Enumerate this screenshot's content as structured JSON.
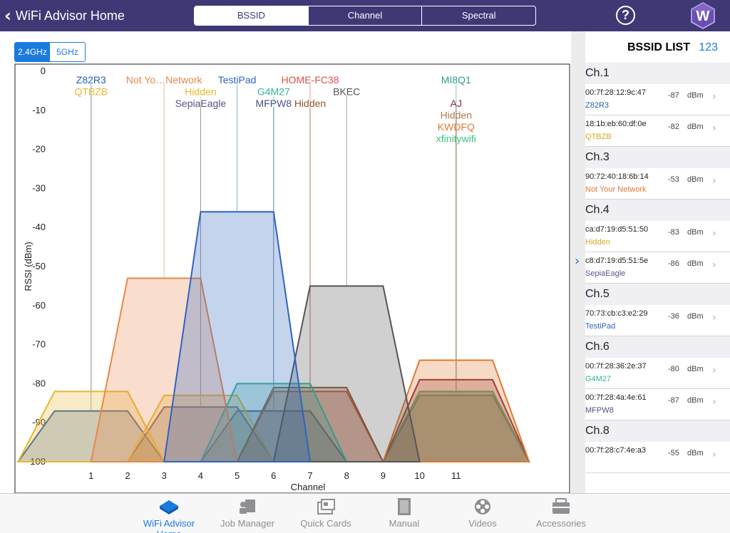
{
  "nav": {
    "back_label": "WiFi Advisor Home",
    "segments": [
      "BSSID",
      "Channel",
      "Spectral"
    ],
    "active_segment": 0,
    "help_label": "?"
  },
  "band": {
    "options": [
      "2.4GHz",
      "5GHz"
    ],
    "active": 0
  },
  "chart_data": {
    "type": "area",
    "xlabel": "Channel",
    "ylabel": "RSSI (dBm)",
    "xlim": [
      -1,
      13
    ],
    "ylim": [
      -100,
      0
    ],
    "x_ticks": [
      1,
      2,
      3,
      4,
      5,
      6,
      7,
      8,
      9,
      10,
      11
    ],
    "y_ticks": [
      0,
      -10,
      -20,
      -30,
      -40,
      -50,
      -60,
      -70,
      -80,
      -90,
      -100
    ],
    "grid": false,
    "series": [
      {
        "name": "QTBZB",
        "channel": 1,
        "rssi": -82,
        "color": "#e8b830",
        "label_row": 1
      },
      {
        "name": "Z82R3",
        "channel": 1,
        "rssi": -87,
        "color": "#2a5fa8",
        "label_row": 0
      },
      {
        "name": "Not Your Network",
        "label": "Not Yo…Network",
        "channel": 3,
        "rssi": -53,
        "color": "#e8874a",
        "label_row": 0
      },
      {
        "name": "Hidden",
        "channel": 4,
        "rssi": -83,
        "color": "#e8b830",
        "label_row": 1
      },
      {
        "name": "SepiaEagle",
        "channel": 4,
        "rssi": -86,
        "color": "#5a5488",
        "label_row": 2
      },
      {
        "name": "TestiPad",
        "channel": 5,
        "rssi": -36,
        "color": "#2f63c0",
        "label_row": 0
      },
      {
        "name": "G4M27",
        "channel": 6,
        "rssi": -80,
        "color": "#32b59a",
        "label_row": 1
      },
      {
        "name": "MFPW8",
        "channel": 6,
        "rssi": -87,
        "color": "#4a4f86",
        "label_row": 2
      },
      {
        "name": "HOME-FC38",
        "channel": 7,
        "rssi": -82,
        "color": "#e05048",
        "label_row": 0
      },
      {
        "name": "Hidden",
        "channel": 7,
        "rssi": -81,
        "color": "#8a5a2a",
        "label_row": 2
      },
      {
        "name": "BKEC",
        "channel": 8,
        "rssi": -55,
        "color": "#555555",
        "label_row": 1
      },
      {
        "name": "MI8Q1",
        "channel": 11,
        "rssi": -83,
        "color": "#2a9a94",
        "label_row": 0
      },
      {
        "name": "AJ",
        "channel": 11,
        "rssi": -79,
        "color": "#8a2a3a",
        "label_row": 2
      },
      {
        "name": "Hidden",
        "channel": 11,
        "rssi": -82,
        "color": "#b07a50",
        "label_row": 3
      },
      {
        "name": "KWDFQ",
        "channel": 11,
        "rssi": -74,
        "color": "#e07a30",
        "label_row": 4
      },
      {
        "name": "xfinitywifi",
        "channel": 11,
        "rssi": -82,
        "color": "#3cc08a",
        "label_row": 5
      }
    ]
  },
  "panel": {
    "title": "BSSID LIST",
    "count": "123",
    "groups": [
      {
        "channel": "Ch.1",
        "rows": [
          {
            "mac": "00:7f:28:12:9c:47",
            "ssid": "Z82R3",
            "ssid_color": "#2a5fa8",
            "rssi": "-87",
            "unit": "dBm"
          },
          {
            "mac": "18:1b:eb:60:df:0e",
            "ssid": "QTBZB",
            "ssid_color": "#d8a820",
            "rssi": "-82",
            "unit": "dBm"
          }
        ]
      },
      {
        "channel": "Ch.3",
        "rows": [
          {
            "mac": "90:72:40:18:6b:14",
            "ssid": "Not Your Network",
            "ssid_color": "#e0783a",
            "rssi": "-53",
            "unit": "dBm"
          }
        ]
      },
      {
        "channel": "Ch.4",
        "rows": [
          {
            "mac": "ca:d7:19:d5:51:50",
            "ssid": "Hidden",
            "ssid_color": "#d8a820",
            "rssi": "-83",
            "unit": "dBm"
          },
          {
            "mac": "c8:d7:19:d5:51:5e",
            "ssid": "SepiaEagle",
            "ssid_color": "#5a5488",
            "rssi": "-86",
            "unit": "dBm"
          }
        ]
      },
      {
        "channel": "Ch.5",
        "rows": [
          {
            "mac": "70:73:cb:c3:e2:29",
            "ssid": "TestiPad",
            "ssid_color": "#2f63c0",
            "rssi": "-36",
            "unit": "dBm"
          }
        ]
      },
      {
        "channel": "Ch.6",
        "rows": [
          {
            "mac": "00:7f:28:36:2e:37",
            "ssid": "G4M27",
            "ssid_color": "#32b59a",
            "rssi": "-80",
            "unit": "dBm"
          },
          {
            "mac": "00:7f:28:4a:4e:61",
            "ssid": "MFPW8",
            "ssid_color": "#4a4f86",
            "rssi": "-87",
            "unit": "dBm"
          }
        ]
      },
      {
        "channel": "Ch.8",
        "rows": [
          {
            "mac": "00:7f:28:c7:4e:a3",
            "ssid": "",
            "ssid_color": "#555555",
            "rssi": "-55",
            "unit": "dBm"
          }
        ]
      }
    ]
  },
  "tabs": [
    {
      "label": "WiFi Advisor Home",
      "icon": "home-diamond-icon",
      "active": true
    },
    {
      "label": "Job Manager",
      "icon": "job-manager-icon",
      "active": false
    },
    {
      "label": "Quick Cards",
      "icon": "quick-cards-icon",
      "active": false
    },
    {
      "label": "Manual",
      "icon": "manual-icon",
      "active": false
    },
    {
      "label": "Videos",
      "icon": "film-reel-icon",
      "active": false
    },
    {
      "label": "Accessories",
      "icon": "accessories-icon",
      "active": false
    }
  ],
  "colors": {
    "nav_bg": "#3e3975",
    "accent": "#1a7ae0"
  }
}
